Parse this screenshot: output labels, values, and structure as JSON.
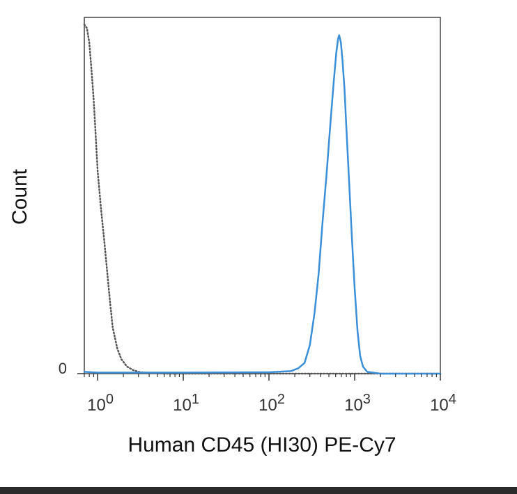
{
  "chart_data": {
    "type": "line",
    "title": "",
    "xlabel": "Human CD45 (HI30) PE-Cy7",
    "ylabel": "Count",
    "x_scale": "log",
    "xlim": [
      0.7,
      10000
    ],
    "ylim": [
      0,
      100
    ],
    "x_ticks": [
      {
        "value": 1,
        "base": "10",
        "exp": "0"
      },
      {
        "value": 10,
        "base": "10",
        "exp": "1"
      },
      {
        "value": 100,
        "base": "10",
        "exp": "2"
      },
      {
        "value": 1000,
        "base": "10",
        "exp": "3"
      },
      {
        "value": 10000,
        "base": "10",
        "exp": "4"
      }
    ],
    "y_ticks": [
      {
        "value": 0,
        "label": "0"
      }
    ],
    "grid": false,
    "legend": "none",
    "series": [
      {
        "style": "dotted",
        "color": "#555555",
        "x": [
          0.7,
          0.75,
          0.8,
          0.85,
          0.9,
          0.95,
          1.0,
          1.1,
          1.2,
          1.3,
          1.4,
          1.5,
          1.7,
          1.9,
          2.2,
          2.6,
          3.0,
          3.5,
          4.0,
          5.0,
          6.0,
          10,
          20,
          50,
          100,
          200,
          500,
          1000,
          3000,
          10000
        ],
        "y": [
          98,
          97,
          93,
          85,
          77,
          67,
          57,
          46,
          37,
          28,
          20,
          13,
          7,
          4,
          2,
          1,
          0.5,
          0.3,
          0.2,
          0.1,
          0,
          0,
          0,
          0,
          0,
          0,
          0,
          0,
          0,
          0
        ]
      },
      {
        "style": "solid",
        "color": "#3a8fd8",
        "x": [
          0.7,
          1,
          10,
          100,
          180,
          220,
          260,
          300,
          340,
          380,
          420,
          470,
          520,
          570,
          610,
          640,
          660,
          690,
          720,
          760,
          800,
          860,
          930,
          1000,
          1080,
          1160,
          1250,
          1400,
          2000,
          10000
        ],
        "y": [
          0.5,
          0.3,
          0.3,
          0.4,
          0.7,
          1.5,
          3,
          8,
          17,
          28,
          42,
          56,
          70,
          82,
          90,
          94,
          95,
          93,
          88,
          80,
          69,
          54,
          38,
          24,
          12,
          5,
          2,
          0.5,
          0,
          0
        ]
      }
    ]
  }
}
